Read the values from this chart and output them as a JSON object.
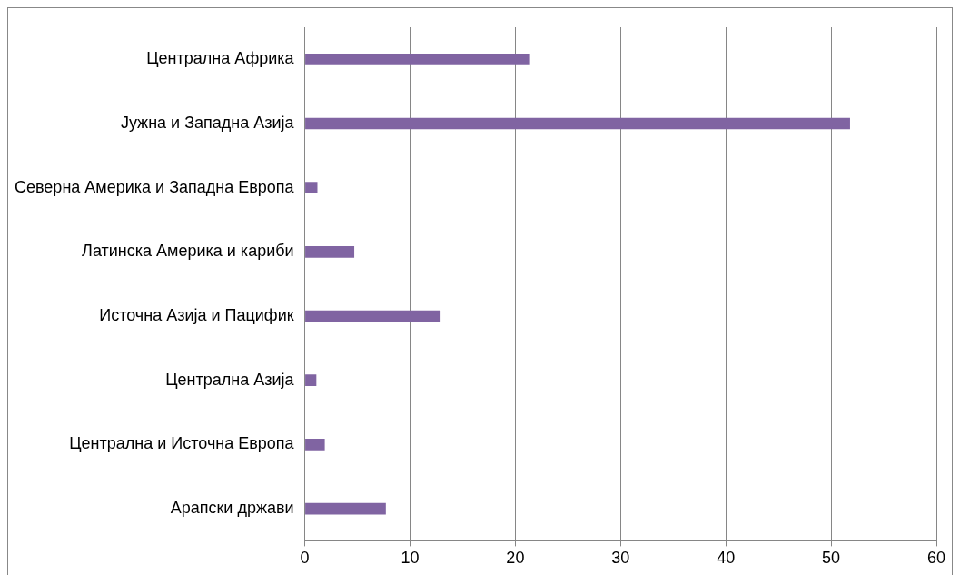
{
  "chart_data": {
    "type": "bar",
    "orientation": "horizontal",
    "categories": [
      "Централна Африка",
      "Јужна и Западна Азија",
      "Северна Америка и Западна Европа",
      "Латинска Америка и кариби",
      "Источна Азија и Пацифик",
      "Централна Азија",
      "Централна и Источна Европа",
      "Арапски држави"
    ],
    "values": [
      21.4,
      51.8,
      1.2,
      4.7,
      12.9,
      1.1,
      1.9,
      7.7
    ],
    "color": "#8064a2",
    "xlim": [
      0,
      60
    ],
    "xticks": [
      0,
      10,
      20,
      30,
      40,
      50,
      60
    ],
    "grid": "x",
    "legend": false
  }
}
